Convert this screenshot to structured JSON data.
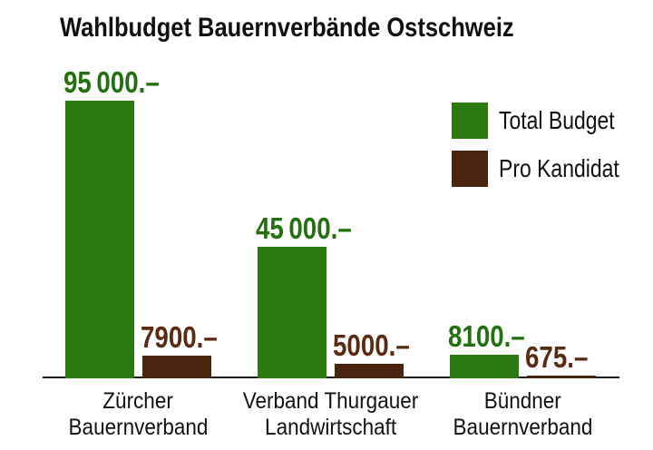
{
  "chart_data": {
    "type": "bar",
    "title": "Wahlbudget Bauernverbände Ostschweiz",
    "categories": [
      [
        "Zürcher",
        "Bauernverband"
      ],
      [
        "Verband Thurgauer",
        "Landwirtschaft"
      ],
      [
        "Bündner",
        "Bauernverband"
      ]
    ],
    "series": [
      {
        "name": "Total Budget",
        "color": "#2b7a10",
        "label_color": "#23700f",
        "values": [
          95000,
          45000,
          8100
        ],
        "value_labels": [
          "95 000.–",
          "45 000.–",
          "8100.–"
        ]
      },
      {
        "name": "Pro Kandidat",
        "color": "#4b240f",
        "label_color": "#5a2a12",
        "values": [
          7900,
          5000,
          675
        ],
        "value_labels": [
          "7900.–",
          "5000.–",
          "675.–"
        ]
      }
    ],
    "ylim": [
      0,
      95000
    ],
    "xlabel": "",
    "ylabel": "",
    "grid": false,
    "legend_position": "top-right",
    "axis_line_color": "#1a1a1a",
    "background": "#ffffff",
    "text_color": "#111111",
    "currency_suffix": ".–"
  }
}
